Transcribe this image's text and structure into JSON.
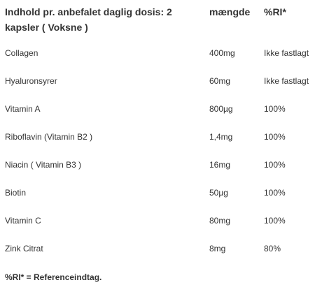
{
  "table": {
    "header": {
      "ingredient": "Indhold pr. anbefalet daglig dosis: 2 kapsler ( Voksne )",
      "amount": "mængde",
      "ri": "%RI*"
    },
    "rows": [
      {
        "name": "Collagen",
        "amount": "400mg",
        "ri": "Ikke fastlagt"
      },
      {
        "name": "Hyaluronsyrer",
        "amount": "60mg",
        "ri": "Ikke fastlagt"
      },
      {
        "name": "Vitamin A",
        "amount": "800µg",
        "ri": "100%"
      },
      {
        "name": "Riboflavin (Vitamin B2 )",
        "amount": "1,4mg",
        "ri": "100%"
      },
      {
        "name": "Niacin ( Vitamin B3 )",
        "amount": "16mg",
        "ri": "100%"
      },
      {
        "name": "Biotin",
        "amount": "50µg",
        "ri": "100%"
      },
      {
        "name": "Vitamin C",
        "amount": "80mg",
        "ri": "100%"
      },
      {
        "name": "Zink Citrat",
        "amount": "8mg",
        "ri": "80%"
      }
    ]
  },
  "footnote": "%RI* = Referenceindtag."
}
